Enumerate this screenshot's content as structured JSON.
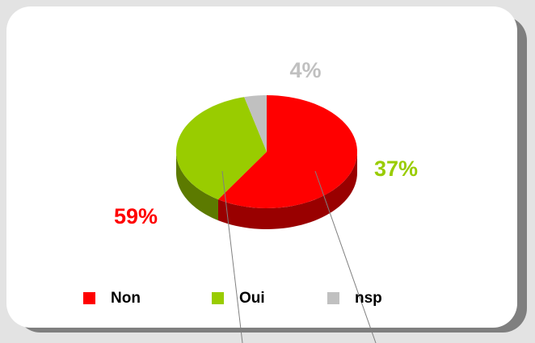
{
  "chart_data": {
    "type": "pie",
    "categories": [
      "Non",
      "Oui",
      "nsp"
    ],
    "values": [
      59,
      37,
      4
    ],
    "value_labels": [
      "59%",
      "37%",
      "4%"
    ],
    "colors": [
      "#ff0000",
      "#99cc00",
      "#c0c0c0"
    ],
    "legend": "bottom"
  }
}
